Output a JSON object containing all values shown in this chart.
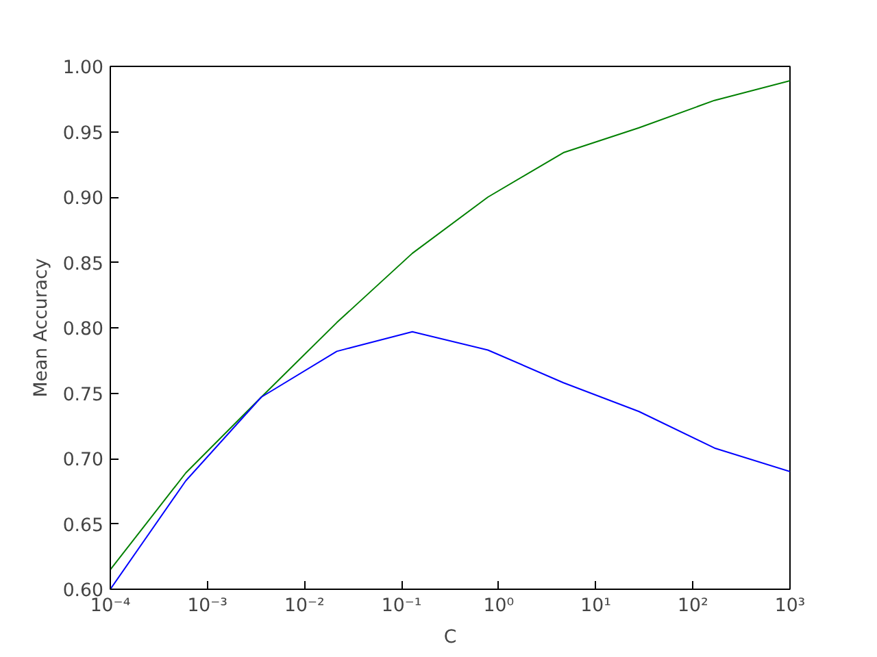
{
  "chart_data": {
    "type": "line",
    "xlabel": "C",
    "ylabel": "Mean Accuracy",
    "log": "x",
    "x": [
      0.0001,
      0.000599,
      0.00359,
      0.0215,
      0.129,
      0.774,
      4.64,
      27.8,
      167,
      1000
    ],
    "series": [
      {
        "color": "#008000",
        "values": [
          0.615,
          0.689,
          0.747,
          0.804,
          0.857,
          0.9,
          0.934,
          0.953,
          0.974,
          0.989
        ]
      },
      {
        "color": "#0000ff",
        "values": [
          0.6,
          0.683,
          0.747,
          0.782,
          0.797,
          0.783,
          0.758,
          0.736,
          0.708,
          0.69
        ]
      }
    ],
    "xlim": [
      0.0001,
      1000
    ],
    "xticks": [
      {
        "value": 0.0001,
        "label": "10⁻⁴"
      },
      {
        "value": 0.001,
        "label": "10⁻³"
      },
      {
        "value": 0.01,
        "label": "10⁻²"
      },
      {
        "value": 0.1,
        "label": "10⁻¹"
      },
      {
        "value": 1,
        "label": "10⁰"
      },
      {
        "value": 10,
        "label": "10¹"
      },
      {
        "value": 100,
        "label": "10²"
      },
      {
        "value": 1000,
        "label": "10³"
      }
    ],
    "ylim": [
      0.6,
      1.0
    ],
    "yticks": [
      {
        "value": 0.6,
        "label": "0.60"
      },
      {
        "value": 0.65,
        "label": "0.65"
      },
      {
        "value": 0.7,
        "label": "0.70"
      },
      {
        "value": 0.75,
        "label": "0.75"
      },
      {
        "value": 0.8,
        "label": "0.80"
      },
      {
        "value": 0.85,
        "label": "0.85"
      },
      {
        "value": 0.9,
        "label": "0.90"
      },
      {
        "value": 0.95,
        "label": "0.95"
      },
      {
        "value": 1.0,
        "label": "1.00"
      }
    ],
    "grid": false,
    "marker": "none",
    "line_style": "solid"
  }
}
